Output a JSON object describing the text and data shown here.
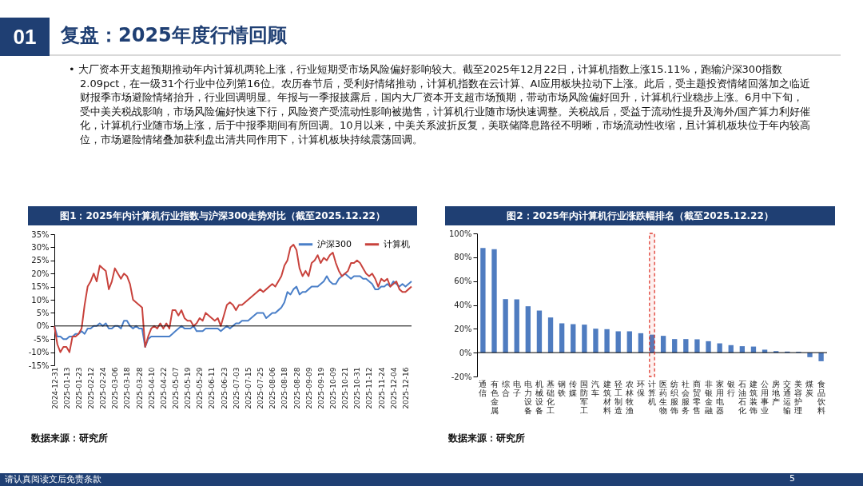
{
  "chart_data": [
    {
      "type": "other",
      "title": "复盘：2025年度行情回顾",
      "annotations": [
        "01",
        "• 大厂资本开支超预期推动年内计算机两轮上涨，行业短期受市场风险偏好影响较大。截至2025年12月22日，计算机指数上涨15.11%，跑输沪深300指数2.09pct，在一级31个行业中位列第16位。农历春节后，受利好情绪推动，计算机指数在云计算、AI应用板块拉动下上涨。此后，受主题投资情绪回落加之临近财报季市场避险情绪抬升，行业回调明显。年报与一季报披露后，国内大厂资本开支超市场预期，带动市场风险偏好回升，计算机行业稳步上涨。6月中下旬，受中美关税战影响，市场风险偏好快速下行，风险资产受流动性影响被抛售，计算机行业随市场快速调整。关税战后，受益于流动性提升及海外/国产算力利好催化，计算机行业随市场上涨，后于中报季期间有所回调。10月以来，中美关系波折反复，美联储降息路径不明晰，市场流动性收缩，且计算机板块位于年内较高位，市场避险情绪叠加获利盘出清共同作用下，计算机板块持续震荡回调。",
        "请认真阅读文后免责条款",
        "5"
      ]
    },
    {
      "type": "line",
      "title": "图1：2025年内计算机行业指数与沪深300走势对比（截至2025.12.22）",
      "categories": [
        "2024-12-31",
        null,
        null,
        null,
        "2025-01-13",
        null,
        null,
        null,
        "2025-01-23",
        null,
        null,
        null,
        "2025-02-12",
        null,
        null,
        null,
        "2025-02-24",
        null,
        null,
        null,
        "2025-03-06",
        null,
        null,
        null,
        "2025-03-18",
        null,
        null,
        null,
        "2025-03-28",
        null,
        null,
        null,
        "2025-04-10",
        null,
        null,
        null,
        "2025-04-22",
        null,
        null,
        null,
        "2025-05-07",
        null,
        null,
        null,
        "2025-05-19",
        null,
        null,
        null,
        "2025-05-29",
        null,
        null,
        null,
        "2025-06-11",
        null,
        null,
        null,
        "2025-06-23",
        null,
        null,
        null,
        "2025-07-03",
        null,
        null,
        null,
        "2025-07-15",
        null,
        null,
        null,
        "2025-07-25",
        null,
        null,
        null,
        "2025-08-06",
        null,
        null,
        null,
        "2025-08-18",
        null,
        null,
        null,
        "2025-08-28",
        null,
        null,
        null,
        "2025-09-09",
        null,
        null,
        null,
        "2025-09-19",
        null,
        null,
        null,
        "2025-10-09",
        null,
        null,
        null,
        "2025-10-21",
        null,
        null,
        null,
        "2025-10-31",
        null,
        null,
        null,
        "2025-11-12",
        null,
        null,
        null,
        "2025-11-24",
        null,
        null,
        null,
        "2025-12-04",
        null,
        null,
        null,
        "2025-12-16",
        null,
        null
      ],
      "series": [
        {
          "name": "沪深300",
          "color": "#4a7fc8",
          "values": [
            0,
            -4,
            -4,
            -5,
            -5,
            -4,
            -4,
            -3,
            -3,
            -2,
            -3,
            -1,
            -1,
            0,
            0,
            1,
            0,
            1,
            -1,
            -1,
            0,
            0,
            -1,
            2,
            2,
            0,
            -1,
            0,
            -1,
            -1,
            -8,
            -5,
            -4,
            -4,
            -4,
            -4,
            -4,
            -4,
            -4,
            -3,
            -2,
            -1,
            0,
            -1,
            -1,
            -1,
            0,
            -2,
            -2,
            -2,
            -1,
            -1,
            -1,
            -1,
            -1,
            -2,
            -1,
            0,
            -1,
            0,
            1,
            1,
            2,
            2,
            2,
            3,
            4,
            5,
            5,
            5,
            3,
            4,
            5,
            5,
            6,
            7,
            9,
            13,
            12,
            14,
            15,
            12,
            13,
            13,
            14,
            15,
            15,
            15,
            16,
            17,
            19,
            17,
            16,
            16,
            18,
            19,
            20,
            19,
            18,
            19,
            19,
            19,
            18,
            18,
            17,
            16,
            14,
            14,
            15,
            15,
            16,
            15,
            17,
            16,
            15,
            16,
            15,
            16,
            17
          ]
        },
        {
          "name": "计算机",
          "color": "#c8423c",
          "values": [
            0,
            -7,
            -10,
            -8,
            -8,
            -10,
            -4,
            -4,
            -3,
            -1,
            8,
            15,
            17,
            20,
            17,
            23,
            22,
            21,
            14,
            17,
            22,
            20,
            18,
            20,
            19,
            16,
            10,
            9,
            8,
            7,
            -8,
            -4,
            -1,
            0,
            -1,
            1,
            -1,
            1,
            -1,
            6,
            6,
            4,
            6,
            3,
            2,
            2,
            0,
            1,
            3,
            2,
            5,
            4,
            3,
            2,
            3,
            0,
            4,
            8,
            9,
            8,
            6,
            8,
            8,
            9,
            10,
            11,
            12,
            13,
            14,
            13,
            14,
            15,
            16,
            15,
            17,
            19,
            23,
            25,
            30,
            31,
            29,
            22,
            19,
            21,
            19,
            24,
            25,
            27,
            24,
            26,
            25,
            27,
            28,
            24,
            21,
            19,
            20,
            21,
            24,
            24,
            25,
            24,
            22,
            20,
            19,
            20,
            18,
            15,
            18,
            17,
            18,
            15,
            16,
            17,
            14,
            13,
            13,
            14,
            15
          ]
        }
      ],
      "ylim": [
        -15,
        35
      ],
      "yticks": [
        {
          "value": -15,
          "label": "-15%"
        },
        {
          "value": -10,
          "label": "-10%"
        },
        {
          "value": -5,
          "label": "-5%"
        },
        {
          "value": 0,
          "label": "0%"
        },
        {
          "value": 5,
          "label": "5%"
        },
        {
          "value": 10,
          "label": "10%"
        },
        {
          "value": 15,
          "label": "15%"
        },
        {
          "value": 20,
          "label": "20%"
        },
        {
          "value": 25,
          "label": "25%"
        },
        {
          "value": 30,
          "label": "30%"
        },
        {
          "value": 35,
          "label": "35%"
        }
      ],
      "ref_lines": [
        {
          "axis": "y",
          "value": 0,
          "color": "#000000"
        }
      ],
      "legend": "top right",
      "grid": false,
      "marker": "none",
      "line_style": "solid",
      "annotations": [
        "数据来源：研究所"
      ]
    },
    {
      "type": "bar",
      "title": "图2：2025年内计算机行业涨跌幅排名（截至2025.12.22）",
      "categories": [
        "通信",
        "有色金属",
        "综合",
        "电子",
        "电力设备",
        "机械设备",
        "基础化工",
        "钢铁",
        "传媒",
        "国防军工",
        "汽车",
        "建筑材料",
        "轻工制造",
        "农林牧渔",
        "环保",
        "计算机",
        "医药生物",
        "纺织服饰",
        "社会服务",
        "商贸零售",
        "非银金融",
        "家用电器",
        "银行",
        "石油石化",
        "建筑装饰",
        "公用事业",
        "房地产",
        "交通运输",
        "美容护理",
        "煤炭",
        "食品饮料"
      ],
      "values": [
        87.8,
        86.7,
        44.9,
        44.7,
        38.9,
        35.3,
        29.5,
        24.6,
        23.9,
        23.5,
        20.1,
        19.7,
        17.9,
        17.9,
        16.3,
        15.1,
        14.1,
        11.4,
        11.4,
        11.2,
        9.6,
        7.8,
        6.3,
        5.4,
        5.1,
        2.5,
        1.3,
        0.9,
        0.7,
        -3.8,
        -7.2
      ],
      "color": "#4f7cc0",
      "ylim": [
        -20,
        100
      ],
      "yticks": [
        {
          "value": -20,
          "label": "-20%"
        },
        {
          "value": 0,
          "label": "0%"
        },
        {
          "value": 20,
          "label": "20%"
        },
        {
          "value": 40,
          "label": "40%"
        },
        {
          "value": 60,
          "label": "60%"
        },
        {
          "value": 80,
          "label": "80%"
        },
        {
          "value": 100,
          "label": "100%"
        }
      ],
      "ref_lines": [
        {
          "axis": "y",
          "value": 0,
          "color": "#000000"
        }
      ],
      "bands": [
        {
          "axis": "x",
          "from": "计算机",
          "to": "计算机",
          "color": "#e03c31"
        }
      ],
      "grid": false,
      "annotations": [
        "数据来源：研究所"
      ]
    }
  ]
}
